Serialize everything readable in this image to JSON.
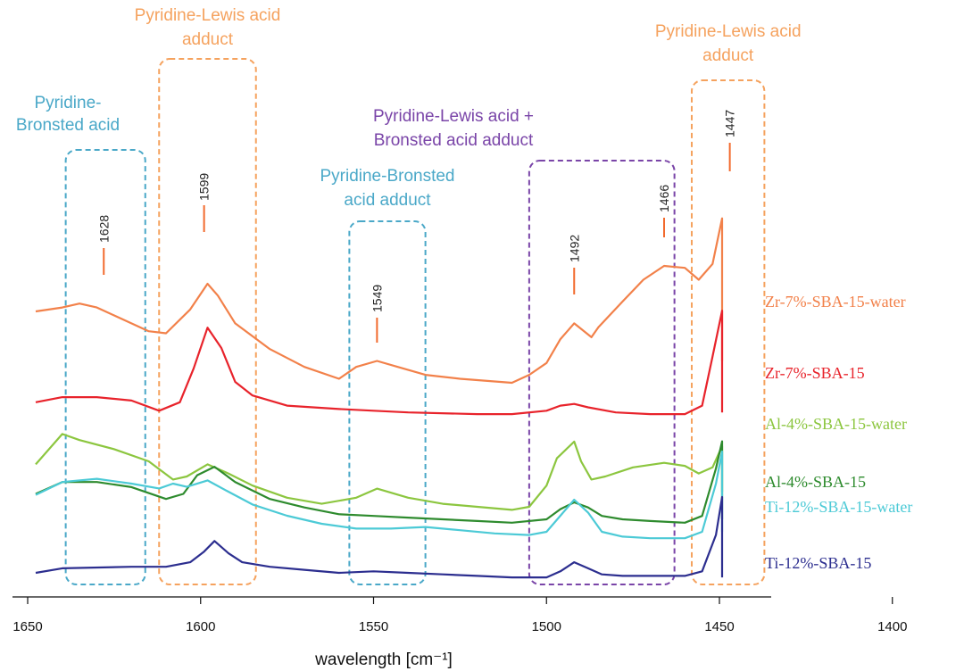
{
  "chart_data": {
    "type": "line",
    "xlabel": "wavelength  [cm⁻¹]",
    "x_ticks": [
      1650,
      1600,
      1550,
      1500,
      1450,
      1400
    ],
    "x_range": [
      1652,
      1400
    ],
    "y_axis": "none (stacked spectra, arbitrary offsets)",
    "grid": false,
    "series": [
      {
        "name": "Zr-7%-SBA-15-water",
        "color": "#f2814a",
        "x": [
          1660,
          1640,
          1635,
          1630,
          1625,
          1615,
          1610,
          1603,
          1598,
          1595,
          1590,
          1580,
          1570,
          1560,
          1555,
          1549,
          1543,
          1535,
          1525,
          1510,
          1505,
          1500,
          1496,
          1492,
          1487,
          1485,
          1478,
          1472,
          1466,
          1460,
          1456,
          1452,
          1447,
          1443,
          1440,
          1436,
          1432,
          1425,
          1415,
          1400
        ],
        "y": [
          0.68,
          0.7,
          0.72,
          0.7,
          0.66,
          0.58,
          0.57,
          0.69,
          0.82,
          0.76,
          0.62,
          0.49,
          0.4,
          0.34,
          0.4,
          0.43,
          0.4,
          0.36,
          0.34,
          0.32,
          0.36,
          0.42,
          0.54,
          0.62,
          0.55,
          0.6,
          0.73,
          0.84,
          0.91,
          0.9,
          0.84,
          0.92,
          1.15,
          0.9,
          0.66,
          0.52,
          0.46,
          0.43,
          0.45,
          0.52
        ]
      },
      {
        "name": "Zr-7%-SBA-15",
        "color": "#e8232b",
        "x": [
          1660,
          1640,
          1630,
          1620,
          1612,
          1606,
          1602,
          1598,
          1594,
          1590,
          1585,
          1575,
          1560,
          1550,
          1540,
          1520,
          1510,
          1500,
          1496,
          1492,
          1488,
          1480,
          1470,
          1460,
          1455,
          1452,
          1447,
          1443,
          1440,
          1436,
          1430,
          1400
        ],
        "y": [
          0.48,
          0.51,
          0.51,
          0.49,
          0.43,
          0.48,
          0.68,
          0.92,
          0.8,
          0.6,
          0.52,
          0.46,
          0.44,
          0.43,
          0.42,
          0.41,
          0.41,
          0.43,
          0.46,
          0.47,
          0.45,
          0.42,
          0.41,
          0.41,
          0.46,
          0.75,
          1.02,
          0.84,
          0.6,
          0.46,
          0.42,
          0.42
        ]
      },
      {
        "name": "Al-4%-SBA-15-water",
        "color": "#8cc63f",
        "x": [
          1660,
          1640,
          1635,
          1625,
          1615,
          1608,
          1604,
          1598,
          1592,
          1585,
          1575,
          1565,
          1555,
          1549,
          1540,
          1530,
          1520,
          1510,
          1505,
          1500,
          1497,
          1492,
          1490,
          1487,
          1483,
          1475,
          1466,
          1460,
          1456,
          1452,
          1447,
          1443,
          1440,
          1436,
          1430,
          1420,
          1410,
          1400
        ],
        "y": [
          0.38,
          0.58,
          0.54,
          0.48,
          0.4,
          0.28,
          0.3,
          0.38,
          0.32,
          0.24,
          0.16,
          0.12,
          0.16,
          0.22,
          0.16,
          0.12,
          0.1,
          0.08,
          0.1,
          0.24,
          0.42,
          0.53,
          0.4,
          0.28,
          0.3,
          0.36,
          0.39,
          0.37,
          0.32,
          0.36,
          0.5,
          0.36,
          0.26,
          0.22,
          0.2,
          0.2,
          0.22,
          0.28
        ]
      },
      {
        "name": "Al-4%-SBA-15",
        "color": "#2e8b2e",
        "x": [
          1660,
          1640,
          1630,
          1620,
          1610,
          1605,
          1601,
          1596,
          1590,
          1580,
          1570,
          1560,
          1550,
          1540,
          1530,
          1520,
          1510,
          1500,
          1496,
          1492,
          1488,
          1484,
          1478,
          1470,
          1460,
          1455,
          1451,
          1447,
          1443,
          1440,
          1436,
          1430,
          1420,
          1400
        ],
        "y": [
          0.15,
          0.22,
          0.22,
          0.19,
          0.12,
          0.15,
          0.26,
          0.31,
          0.22,
          0.12,
          0.07,
          0.03,
          0.02,
          0.01,
          0.0,
          -0.01,
          -0.02,
          0.0,
          0.06,
          0.1,
          0.07,
          0.02,
          0.0,
          -0.01,
          -0.02,
          0.02,
          0.3,
          0.46,
          0.3,
          0.1,
          0.02,
          0.0,
          0.0,
          0.0
        ]
      },
      {
        "name": "Ti-12%-SBA-15-water",
        "color": "#4ccad6",
        "x": [
          1660,
          1640,
          1630,
          1620,
          1612,
          1608,
          1604,
          1598,
          1592,
          1585,
          1575,
          1565,
          1555,
          1545,
          1535,
          1525,
          1515,
          1505,
          1500,
          1496,
          1492,
          1488,
          1484,
          1478,
          1470,
          1460,
          1455,
          1451,
          1447,
          1443,
          1440,
          1436,
          1430,
          1400
        ],
        "y": [
          0.13,
          0.21,
          0.23,
          0.2,
          0.17,
          0.2,
          0.18,
          0.22,
          0.15,
          0.07,
          0.0,
          -0.05,
          -0.08,
          -0.08,
          -0.07,
          -0.09,
          -0.11,
          -0.12,
          -0.1,
          0.0,
          0.1,
          0.02,
          -0.1,
          -0.13,
          -0.14,
          -0.14,
          -0.1,
          0.2,
          0.4,
          0.2,
          0.0,
          -0.08,
          -0.1,
          -0.1
        ]
      },
      {
        "name": "Ti-12%-SBA-15",
        "color": "#2c2e8f",
        "x": [
          1660,
          1640,
          1620,
          1610,
          1603,
          1599,
          1596,
          1592,
          1588,
          1580,
          1570,
          1560,
          1550,
          1540,
          1530,
          1520,
          1510,
          1500,
          1496,
          1492,
          1488,
          1484,
          1478,
          1470,
          1460,
          1455,
          1451,
          1447,
          1443,
          1440,
          1436,
          1430,
          1400
        ],
        "y": [
          0.0,
          0.03,
          0.04,
          0.04,
          0.07,
          0.14,
          0.21,
          0.13,
          0.07,
          0.04,
          0.02,
          0.0,
          0.01,
          0.0,
          -0.01,
          -0.02,
          -0.03,
          -0.03,
          0.01,
          0.07,
          0.03,
          -0.01,
          -0.02,
          -0.02,
          -0.02,
          0.01,
          0.25,
          0.5,
          0.25,
          0.03,
          -0.01,
          -0.02,
          -0.03
        ]
      }
    ],
    "peak_labels": [
      {
        "x": 1628,
        "label": "1628"
      },
      {
        "x": 1599,
        "label": "1599"
      },
      {
        "x": 1549,
        "label": "1549"
      },
      {
        "x": 1492,
        "label": "1492"
      },
      {
        "x": 1466,
        "label": "1466"
      },
      {
        "x": 1447,
        "label": "1447"
      }
    ],
    "regions": [
      {
        "x_range": [
          1639,
          1616
        ],
        "color": "#4aa8c8",
        "label": [
          "Pyridine-",
          "Bronsted acid"
        ]
      },
      {
        "x_range": [
          1612,
          1584
        ],
        "color": "#f5a25e",
        "label": [
          "Pyridine-Lewis acid",
          "adduct"
        ]
      },
      {
        "x_range": [
          1557,
          1535
        ],
        "color": "#4aa8c8",
        "label": [
          "Pyridine-Bronsted",
          "acid adduct"
        ]
      },
      {
        "x_range": [
          1505,
          1463
        ],
        "color": "#7a45a8",
        "label": [
          "Pyridine-Lewis acid +",
          "Bronsted acid adduct"
        ]
      },
      {
        "x_range": [
          1458,
          1437
        ],
        "color": "#f5a25e",
        "label": [
          "Pyridine-Lewis acid",
          "adduct"
        ]
      }
    ]
  }
}
